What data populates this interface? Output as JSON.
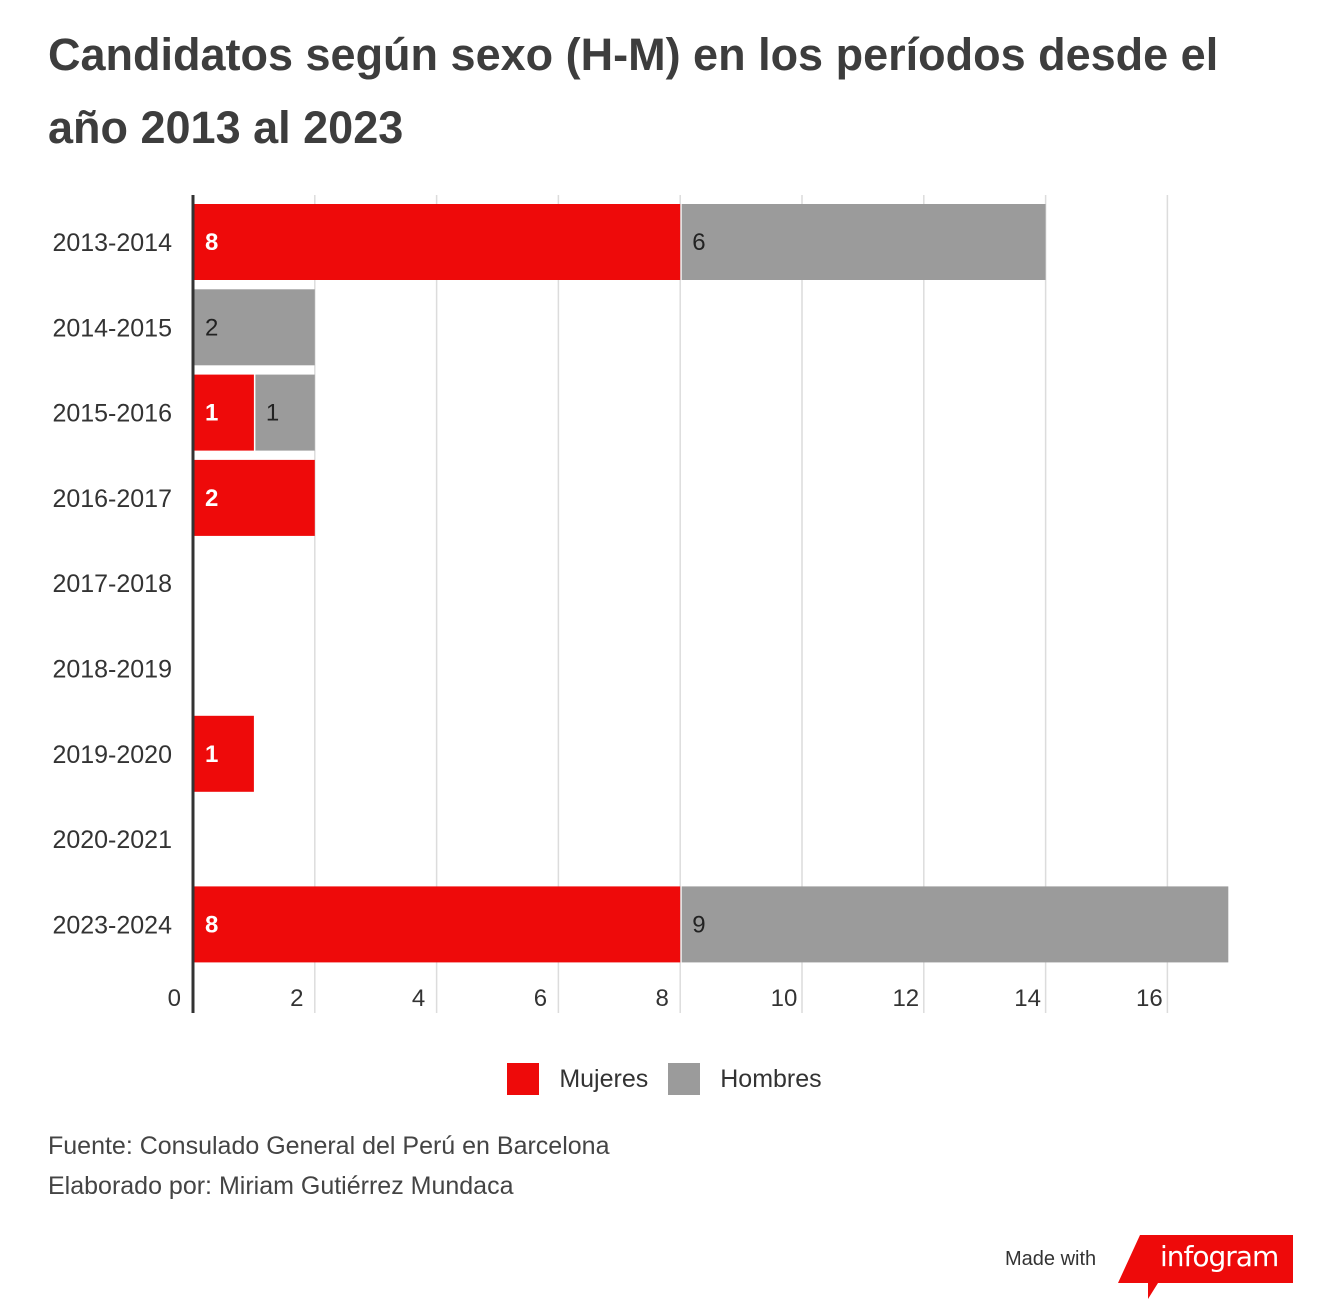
{
  "title": "Candidatos según sexo (H-M) en los períodos desde el año  2013 al 2023",
  "colors": {
    "mujeres": "#ee0a0a",
    "hombres": "#9b9b9b",
    "grid": "#dcdcdc",
    "axis": "#333333"
  },
  "chart_data": {
    "type": "bar",
    "orientation": "horizontal",
    "stacked": true,
    "title": "Candidatos según sexo (H-M) en los períodos desde el año  2013 al 2023",
    "categories": [
      "2013-2014",
      "2014-2015",
      "2015-2016",
      "2016-2017",
      "2017-2018",
      "2018-2019",
      "2019-2020",
      "2020-2021",
      "2023-2024"
    ],
    "series": [
      {
        "name": "Mujeres",
        "values": [
          8,
          0,
          1,
          2,
          0,
          0,
          1,
          0,
          8
        ]
      },
      {
        "name": "Hombres",
        "values": [
          6,
          2,
          1,
          0,
          0,
          0,
          0,
          0,
          9
        ]
      }
    ],
    "xlim": [
      0,
      17
    ],
    "xticks": [
      0,
      2,
      4,
      6,
      8,
      10,
      12,
      14,
      16
    ],
    "xlabel": "",
    "ylabel": "",
    "grid": true,
    "legend": "bottom-center"
  },
  "legend": {
    "mujeres": "Mujeres",
    "hombres": "Hombres"
  },
  "footer": {
    "source": "Fuente: Consulado General del Perú en Barcelona",
    "author": "Elaborado por: Miriam Gutiérrez Mundaca"
  },
  "branding": {
    "made_with": "Made with",
    "logo": "infogram"
  }
}
